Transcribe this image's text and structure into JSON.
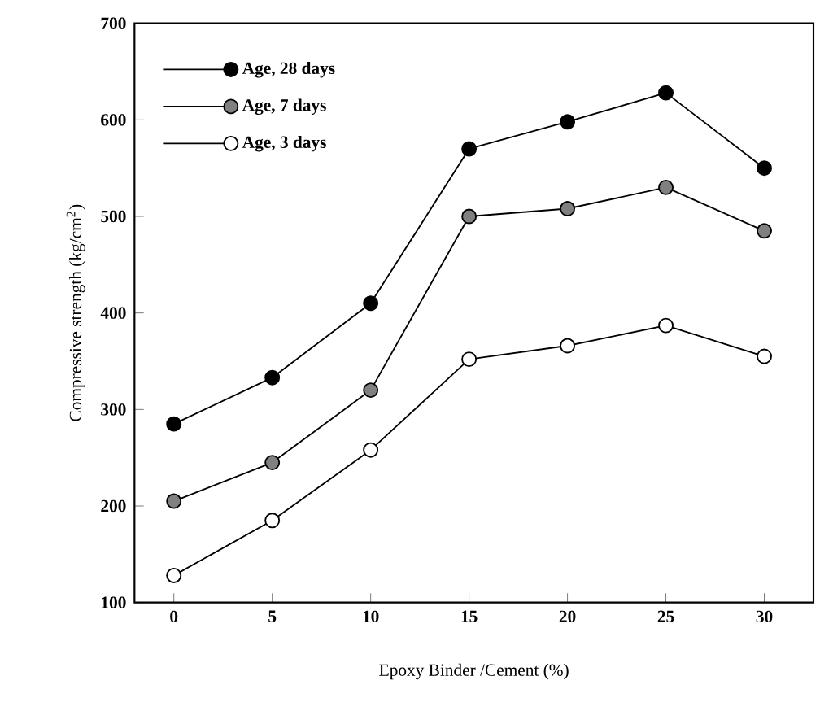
{
  "chart_data": {
    "type": "line",
    "xlabel": "Epoxy Binder /Cement (%)",
    "ylabel": "Compressive strength (kg/cm$^{2}$)",
    "x": [
      0,
      5,
      10,
      15,
      20,
      25,
      30
    ],
    "series": [
      {
        "name": "Age, 28 days",
        "color": "#000000",
        "values": [
          285,
          333,
          410,
          570,
          598,
          628,
          550
        ]
      },
      {
        "name": "Age, 7 days",
        "color": "#808080",
        "values": [
          205,
          245,
          320,
          500,
          508,
          530,
          485
        ]
      },
      {
        "name": "Age, 3 days",
        "color": "#ffffff",
        "values": [
          128,
          185,
          258,
          352,
          366,
          387,
          355
        ]
      }
    ],
    "xlim": [
      -2,
      32.5
    ],
    "ylim": [
      100,
      700
    ],
    "xticks": [
      0,
      5,
      10,
      15,
      20,
      25,
      30
    ],
    "yticks": [
      100,
      200,
      300,
      400,
      500,
      600,
      700
    ],
    "grid": false,
    "legend": "top left",
    "marker": "circle",
    "line_style": "solid"
  }
}
